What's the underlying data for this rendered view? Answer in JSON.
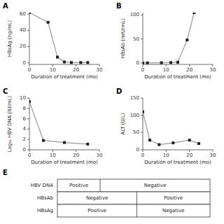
{
  "chart_data": [
    {
      "type": "line",
      "title": "A",
      "x": [
        0,
        8,
        12,
        15,
        18,
        22,
        25
      ],
      "values": [
        62,
        50,
        7,
        1,
        0.3,
        0.3,
        0.3
      ],
      "xlabel": "Duration of treatment (mo)",
      "ylabel": "HBsAg (ng/mL)",
      "xlim": [
        0,
        30
      ],
      "ylim": [
        -2,
        62
      ],
      "xticks": [
        0,
        10,
        20,
        30
      ],
      "yticks": [
        0,
        20,
        40,
        60
      ],
      "color": "#999999",
      "marker": "square"
    },
    {
      "type": "line",
      "title": "B",
      "x": [
        0,
        2,
        8,
        12,
        15,
        19,
        22
      ],
      "values": [
        0,
        0.2,
        0.5,
        0.8,
        1.5,
        48,
        105
      ],
      "xlabel": "Duration of treatment (mo)",
      "ylabel": "HBsAb (mIU/mL)",
      "xlim": [
        0,
        30
      ],
      "ylim": [
        -3,
        105
      ],
      "xticks": [
        0,
        10,
        20,
        30
      ],
      "yticks": [
        0,
        50,
        100
      ],
      "color": "#999999",
      "marker": "square"
    },
    {
      "type": "line",
      "title": "C",
      "x": [
        0,
        6,
        15,
        25
      ],
      "values": [
        9.3,
        1.8,
        1.4,
        1.1
      ],
      "xlabel": "Duration of treatment (mo)",
      "ylabel": "Log₁₀ HBV DNA (IU/mL)",
      "xlim": [
        0,
        30
      ],
      "ylim": [
        0,
        10
      ],
      "xticks": [
        0,
        10,
        20,
        30
      ],
      "yticks": [
        0,
        2,
        4,
        6,
        8,
        10
      ],
      "color": "#999999",
      "marker": "square"
    },
    {
      "type": "line",
      "title": "D",
      "x": [
        0,
        3,
        7,
        13,
        20,
        24
      ],
      "values": [
        110,
        28,
        15,
        20,
        28,
        18
      ],
      "xlabel": "Duration of treatment (mo)",
      "ylabel": "ALT (U/L)",
      "xlim": [
        0,
        30
      ],
      "ylim": [
        0,
        150
      ],
      "xticks": [
        0,
        10,
        20,
        30
      ],
      "yticks": [
        0,
        50,
        100,
        150
      ],
      "color": "#999999",
      "marker": "square"
    },
    {
      "type": "table",
      "title": "E",
      "rows": [
        {
          "label": "HBV DNA",
          "left_text": "Positive",
          "right_text": "Negative",
          "split": 0.28
        },
        {
          "label": "HBsAb",
          "left_text": "Negative",
          "right_text": "Positive",
          "split": 0.52
        },
        {
          "label": "HBsAg",
          "left_text": "Positive",
          "right_text": "Negative",
          "split": 0.52
        }
      ]
    }
  ]
}
